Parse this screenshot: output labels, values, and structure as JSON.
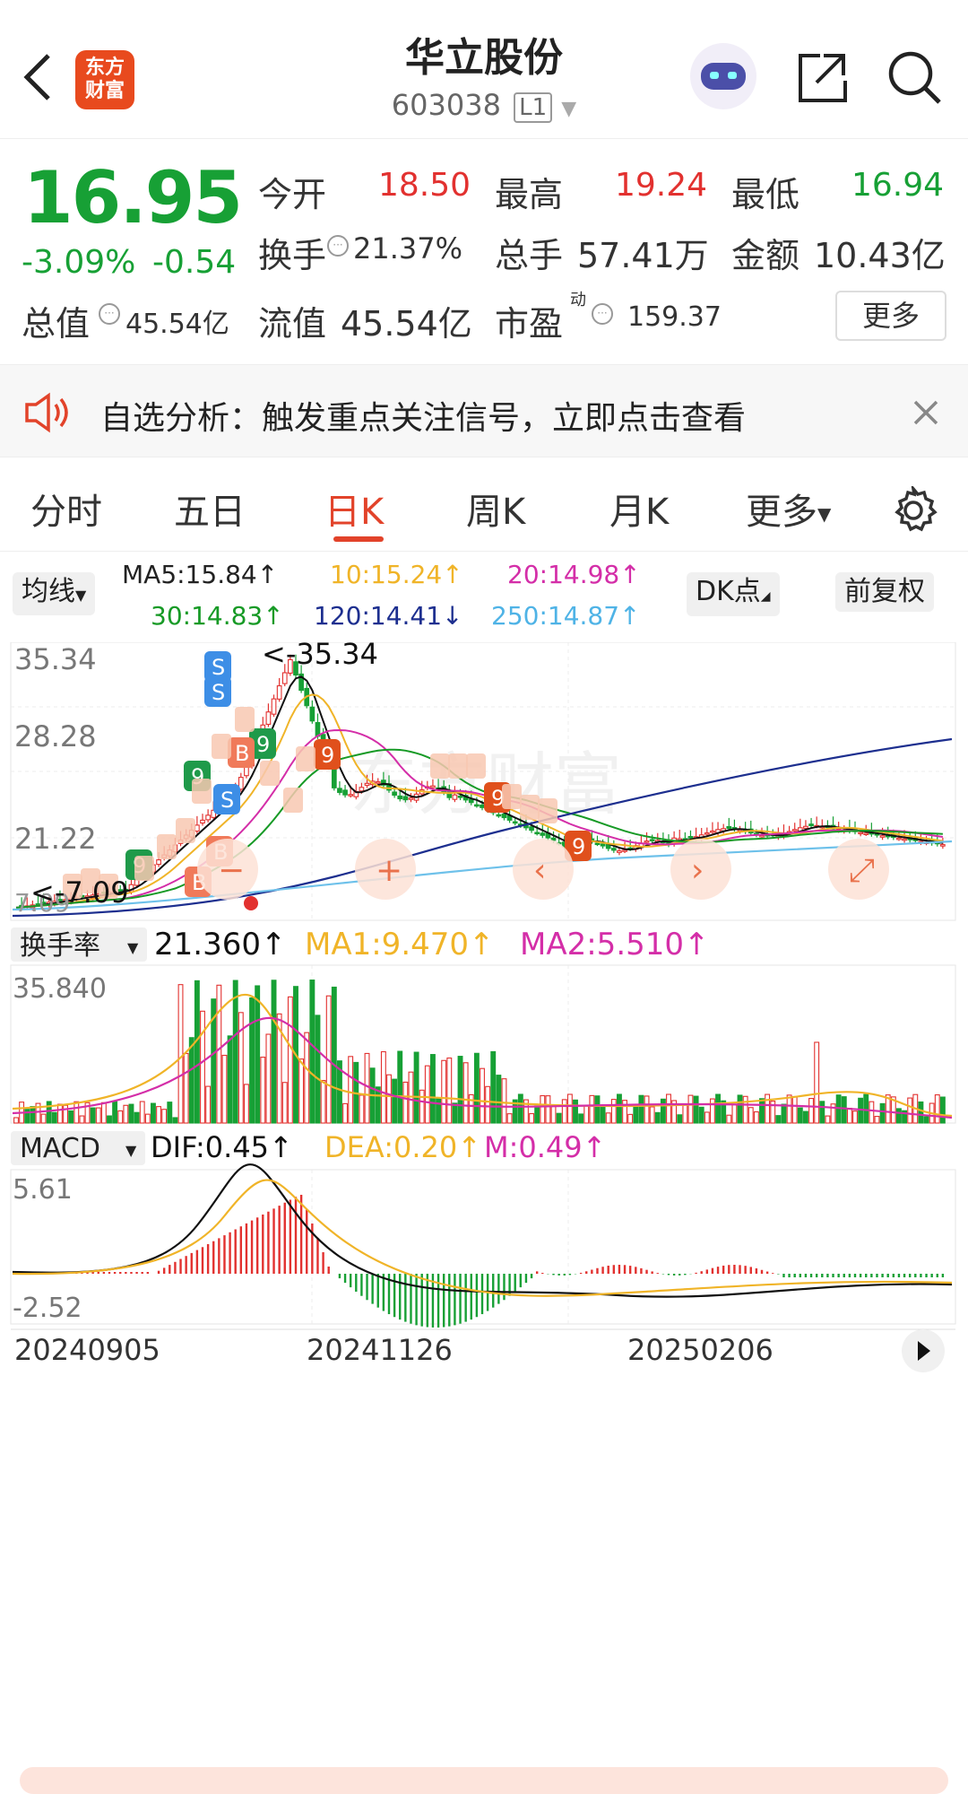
{
  "header": {
    "title": "华立股份",
    "code": "603038",
    "level_badge": "L1",
    "logo_line1": "东方",
    "logo_line2": "财富"
  },
  "quote": {
    "price": "16.95",
    "change_pct": "-3.09%",
    "change_abs": "-0.54",
    "open_label": "今开",
    "open": "18.50",
    "high_label": "最高",
    "high": "19.24",
    "low_label": "最低",
    "low": "16.94",
    "turnover_label": "换手",
    "turnover": "21.37%",
    "volume_label": "总手",
    "volume": "57.41万",
    "amount_label": "金额",
    "amount": "10.43亿",
    "mktcap_label": "总值",
    "mktcap": "45.54亿",
    "float_label": "流值",
    "float": "45.54亿",
    "pe_label": "市盈",
    "pe_sup": "动",
    "pe": "159.37",
    "more_button": "更多"
  },
  "banner": {
    "text": "自选分析：触发重点关注信号，立即点击查看"
  },
  "tabs": [
    "分时",
    "五日",
    "日K",
    "周K",
    "月K",
    "更多"
  ],
  "active_tab": "日K",
  "ma": {
    "selector": "均线",
    "ma5": "MA5:15.84↑",
    "ma10": "10:15.24↑",
    "ma20": "20:14.98↑",
    "ma30": "30:14.83↑",
    "ma120": "120:14.41↓",
    "ma250": "250:14.87↑",
    "dk_button": "DK点",
    "adjust_button": "前复权"
  },
  "colors": {
    "up": "#e2312f",
    "down": "#17a035",
    "accent": "#e2432a",
    "ma5": "#111111",
    "ma10": "#f0b428",
    "ma20": "#d42ea8",
    "ma30": "#179a26",
    "ma120": "#1d2f8f",
    "ma250": "#6ec1ea"
  },
  "price_axis": {
    "top": "35.34",
    "l2": "28.28",
    "l3": "21.22",
    "l4": "14.15",
    "bottom": "7.09",
    "max_marker": "<-35.34",
    "min_marker": "<-7.09"
  },
  "turnover_panel": {
    "selector": "换手率",
    "value": "21.360↑",
    "ma1": "MA1:9.470↑",
    "ma2": "MA2:5.510↑",
    "top": "35.840"
  },
  "macd_panel": {
    "selector": "MACD",
    "dif": "DIF:0.45↑",
    "dea": "DEA:0.20↑",
    "m": "M:0.49↑",
    "top": "5.61",
    "bottom": "-2.52"
  },
  "dates": [
    "20240905",
    "20241126",
    "20250206"
  ],
  "watermark": "东方财富",
  "chart_controls": [
    "minus-icon",
    "plus-icon",
    "left-icon",
    "right-icon",
    "expand-icon"
  ]
}
